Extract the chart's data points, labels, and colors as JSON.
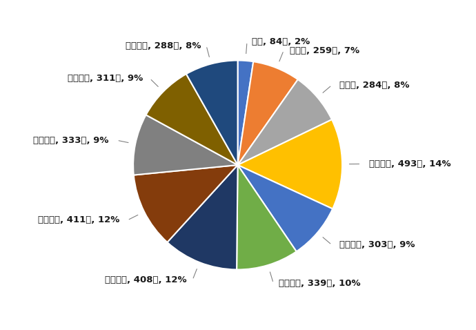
{
  "labels": [
    "０歳, 84人, 2%",
    "１歳～, 259人, 7%",
    "５歳～, 284人, 8%",
    "１０歳～, 493人, 14%",
    "２０歳～, 303人, 9%",
    "３０歳～, 339人, 10%",
    "４０歳～, 408人, 12%",
    "５０歳～, 411人, 12%",
    "６０歳～, 333人, 9%",
    "７０歳～, 311人, 9%",
    "８０歳～, 288人, 8%"
  ],
  "values": [
    84,
    259,
    284,
    493,
    303,
    339,
    408,
    411,
    333,
    311,
    288
  ],
  "colors": [
    "#4472C4",
    "#ED7D31",
    "#A5A5A5",
    "#FFC000",
    "#4472C4",
    "#70AD47",
    "#1F3864",
    "#843C0C",
    "#808080",
    "#7F6000",
    "#1F497D"
  ],
  "background_color": "#FFFFFF",
  "label_fontsize": 9.5,
  "startangle": 90,
  "figsize": [
    6.9,
    4.78
  ],
  "dpi": 100
}
